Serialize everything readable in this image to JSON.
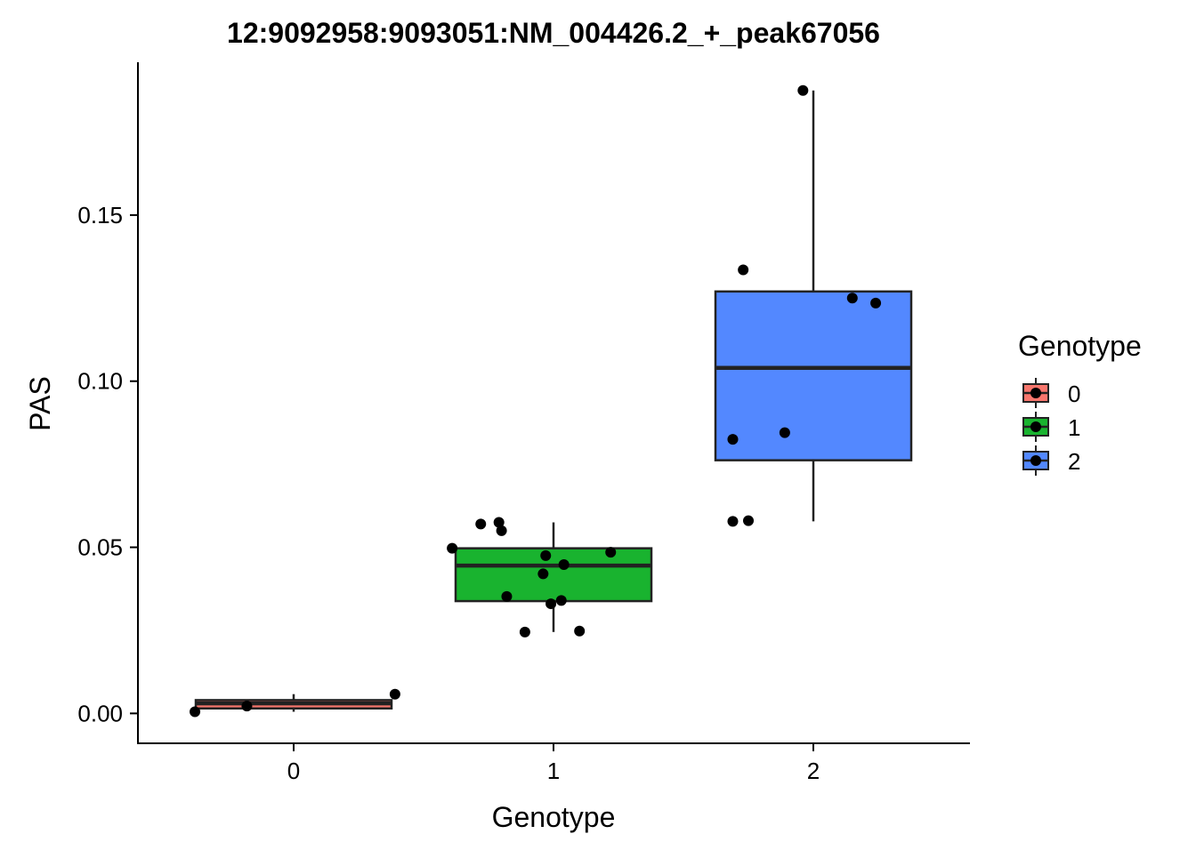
{
  "chart_data": {
    "type": "boxplot",
    "title": "12:9092958:9093051:NM_004426.2_+_peak67056",
    "xlabel": "Genotype",
    "ylabel": "PAS",
    "categories": [
      "0",
      "1",
      "2"
    ],
    "yticks": [
      0.0,
      0.05,
      0.1,
      0.15
    ],
    "ytick_labels": [
      "0.00",
      "0.05",
      "0.10",
      "0.15"
    ],
    "ylim": [
      -0.009,
      0.196
    ],
    "grid": false,
    "legend": {
      "title": "Genotype",
      "placement": "right",
      "entries": [
        "0",
        "1",
        "2"
      ]
    },
    "colors": {
      "0": "#F8766D",
      "1": "#19B32F",
      "2": "#5388FF"
    },
    "boxes": [
      {
        "category": "0",
        "whisker_low": 0.0005,
        "q1": 0.0015,
        "median": 0.003,
        "q3": 0.004,
        "whisker_high": 0.0058
      },
      {
        "category": "1",
        "whisker_low": 0.0245,
        "q1": 0.0338,
        "median": 0.0445,
        "q3": 0.0497,
        "whisker_high": 0.0575
      },
      {
        "category": "2",
        "whisker_low": 0.0578,
        "q1": 0.0762,
        "median": 0.104,
        "q3": 0.127,
        "whisker_high": 0.1875
      }
    ],
    "points": [
      {
        "category": "0",
        "jitter": -0.38,
        "value": 0.0005
      },
      {
        "category": "0",
        "jitter": -0.18,
        "value": 0.0022
      },
      {
        "category": "0",
        "jitter": 0.39,
        "value": 0.0058
      },
      {
        "category": "1",
        "jitter": -0.39,
        "value": 0.0497
      },
      {
        "category": "1",
        "jitter": -0.28,
        "value": 0.057
      },
      {
        "category": "1",
        "jitter": -0.21,
        "value": 0.0575
      },
      {
        "category": "1",
        "jitter": -0.2,
        "value": 0.055
      },
      {
        "category": "1",
        "jitter": -0.18,
        "value": 0.0352
      },
      {
        "category": "1",
        "jitter": -0.11,
        "value": 0.0245
      },
      {
        "category": "1",
        "jitter": -0.04,
        "value": 0.042
      },
      {
        "category": "1",
        "jitter": -0.03,
        "value": 0.0475
      },
      {
        "category": "1",
        "jitter": -0.01,
        "value": 0.033
      },
      {
        "category": "1",
        "jitter": 0.03,
        "value": 0.034
      },
      {
        "category": "1",
        "jitter": 0.04,
        "value": 0.0448
      },
      {
        "category": "1",
        "jitter": 0.1,
        "value": 0.0248
      },
      {
        "category": "1",
        "jitter": 0.22,
        "value": 0.0485
      },
      {
        "category": "2",
        "jitter": -0.31,
        "value": 0.0825
      },
      {
        "category": "2",
        "jitter": -0.31,
        "value": 0.0578
      },
      {
        "category": "2",
        "jitter": -0.27,
        "value": 0.1335
      },
      {
        "category": "2",
        "jitter": -0.25,
        "value": 0.058
      },
      {
        "category": "2",
        "jitter": -0.11,
        "value": 0.0845
      },
      {
        "category": "2",
        "jitter": -0.04,
        "value": 0.1875
      },
      {
        "category": "2",
        "jitter": 0.15,
        "value": 0.125
      },
      {
        "category": "2",
        "jitter": 0.24,
        "value": 0.1235
      }
    ]
  }
}
